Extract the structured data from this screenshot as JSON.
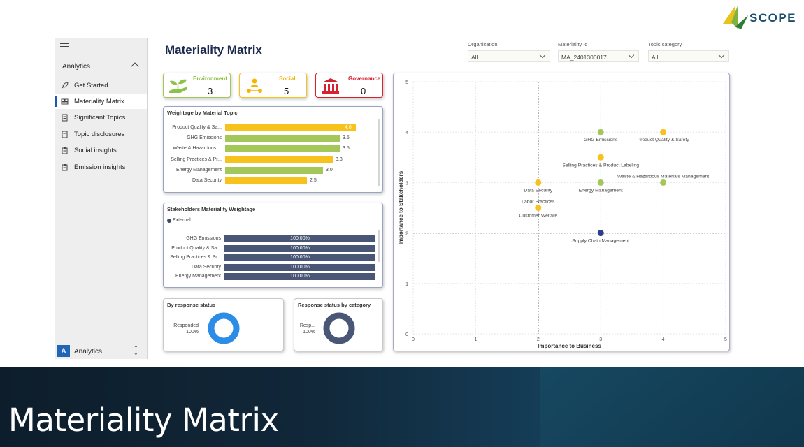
{
  "brand": {
    "logo_text": "SCOPE",
    "colors": {
      "navy": "#1b2a4e",
      "green": "#a4c75a",
      "yellow": "#f7c21b",
      "red": "#d6212f",
      "slate": "#4a5676",
      "blue": "#2b8de6"
    }
  },
  "sidebar": {
    "section": "Analytics",
    "items": [
      {
        "label": "Get Started",
        "icon": "rocket-icon"
      },
      {
        "label": "Materiality Matrix",
        "icon": "matrix-icon",
        "active": true
      },
      {
        "label": "Significant Topics",
        "icon": "document-icon"
      },
      {
        "label": "Topic disclosures",
        "icon": "document-icon"
      },
      {
        "label": "Social insights",
        "icon": "clipboard-icon"
      },
      {
        "label": "Emission insights",
        "icon": "clipboard-icon"
      }
    ],
    "footer": {
      "avatar": "A",
      "label": "Analytics"
    }
  },
  "page_title": "Materiality Matrix",
  "filters": [
    {
      "label": "Organization",
      "value": "All"
    },
    {
      "label": "Materiality Id",
      "value": "MA_2401300017"
    },
    {
      "label": "Topic category",
      "value": "All"
    }
  ],
  "kpis": [
    {
      "label": "Environment",
      "value": "3",
      "color": "#a4c75a"
    },
    {
      "label": "Social",
      "value": "5",
      "color": "#f7c21b"
    },
    {
      "label": "Governance",
      "value": "0",
      "color": "#d6212f"
    }
  ],
  "weightage": {
    "title": "Weightage by Material Topic",
    "max": 4.0,
    "rows": [
      {
        "label": "Product Quality & Sa...",
        "value": 4.0,
        "display": "4.0",
        "color": "#f7c21b"
      },
      {
        "label": "GHG Emissions",
        "value": 3.5,
        "display": "3.5",
        "color": "#a4c75a"
      },
      {
        "label": "Waste & Hazardous ...",
        "value": 3.5,
        "display": "3.5",
        "color": "#a4c75a"
      },
      {
        "label": "Selling Practices & Pr...",
        "value": 3.3,
        "display": "3.3",
        "color": "#f7c21b"
      },
      {
        "label": "Energy Management",
        "value": 3.0,
        "display": "3.0",
        "color": "#a4c75a"
      },
      {
        "label": "Data Security",
        "value": 2.5,
        "display": "2.5",
        "color": "#f7c21b"
      }
    ]
  },
  "stakeholders": {
    "title": "Stakeholders Materiality Weightage",
    "legend": "External",
    "rows": [
      {
        "label": "GHG Emissions",
        "value": 100,
        "display": "100.00%"
      },
      {
        "label": "Product Quality & Sa...",
        "value": 100,
        "display": "100.00%"
      },
      {
        "label": "Selling Practices & Pr...",
        "value": 100,
        "display": "100.00%"
      },
      {
        "label": "Data Security",
        "value": 100,
        "display": "100.00%"
      },
      {
        "label": "Energy Management",
        "value": 100,
        "display": "100.00%"
      }
    ]
  },
  "donuts": [
    {
      "title": "By response status",
      "label": "Responded",
      "pct": "100%",
      "value": 100,
      "color": "#2b8de6"
    },
    {
      "title": "Response status by category",
      "label": "Resp...",
      "pct": "100%",
      "value": 100,
      "color": "#4a5676"
    }
  ],
  "chart_data": {
    "type": "scatter",
    "xlabel": "Importance to Business",
    "ylabel": "Importance to Stakeholders",
    "xlim": [
      0,
      5
    ],
    "ylim": [
      0,
      5
    ],
    "xticks": [
      "0",
      "1",
      "2",
      "3",
      "4",
      "5"
    ],
    "yticks": [
      "0",
      "1",
      "2",
      "3",
      "4",
      "5"
    ],
    "reference_lines": {
      "x": 2,
      "y": 2
    },
    "grid": true,
    "points": [
      {
        "label": "GHG Emissions",
        "x": 3,
        "y": 4,
        "color": "#a4c75a"
      },
      {
        "label": "Product Quality & Safety",
        "x": 4,
        "y": 4,
        "color": "#f7c21b"
      },
      {
        "label": "Selling Practices & Product Labeling",
        "x": 3,
        "y": 3.5,
        "color": "#f7c21b"
      },
      {
        "label": "Waste & Hazardous Materials Management",
        "x": 4,
        "y": 3,
        "color": "#a4c75a"
      },
      {
        "label": "Energy Management",
        "x": 3,
        "y": 3,
        "color": "#a4c75a"
      },
      {
        "label": "Data Security",
        "x": 2,
        "y": 3,
        "color": "#f7c21b"
      },
      {
        "label": "Labor Practices",
        "x": 2,
        "y": 2.5,
        "color": "#f7c21b"
      },
      {
        "label": "Customer Welfare",
        "x": 2,
        "y": 2.5,
        "color": "#f7c21b"
      },
      {
        "label": "Supply Chain Management",
        "x": 3,
        "y": 2,
        "color": "#2e3e8c"
      }
    ]
  },
  "banner": {
    "title": "Materiality Matrix"
  }
}
